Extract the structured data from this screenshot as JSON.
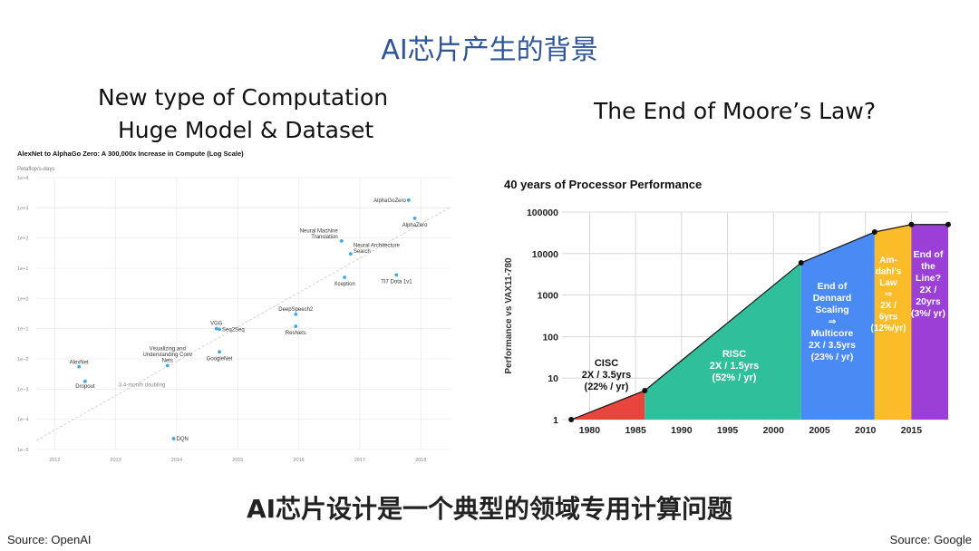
{
  "slide": {
    "title": "AI芯片产生的背景",
    "left_heading_line1": "New type of Computation",
    "left_heading_line2": "Huge Model & Dataset",
    "right_heading": "The End of Moore’s Law?",
    "footer_title": "AI芯片设计是一个典型的领域专用计算问题",
    "source_left": "Source: OpenAI",
    "source_right": "Source: Google"
  },
  "chart_data": [
    {
      "type": "scatter",
      "title": "AlexNet to AlphaGo Zero: A 300,000x Increase in Compute (Log Scale)",
      "ylabel": "Petaflop/s-days",
      "yscale": "log",
      "ylim": [
        1e-05,
        10000
      ],
      "xlim": [
        2011.7,
        2018.5
      ],
      "x_ticks": [
        "2012",
        "2013",
        "2014",
        "2015",
        "2016",
        "2017",
        "2018"
      ],
      "y_ticks": [
        "1e−5",
        "1e−4",
        "1e−3",
        "1e−2",
        "1e−1",
        "1e+0",
        "1e+1",
        "1e+2",
        "1e+3",
        "1e+4"
      ],
      "grid": true,
      "point_color": "#3fa9e0",
      "points": [
        {
          "label": "AlexNet",
          "x": 2012.4,
          "y": 0.0055
        },
        {
          "label": "Dropout",
          "x": 2012.5,
          "y": 0.0018
        },
        {
          "label": "DQN",
          "x": 2013.95,
          "y": 2.3e-05
        },
        {
          "label": "Visualizing and Understanding Conv Nets",
          "x": 2013.85,
          "y": 0.006
        },
        {
          "label": "GoogleNet",
          "x": 2014.7,
          "y": 0.017
        },
        {
          "label": "VGG",
          "x": 2014.65,
          "y": 0.1
        },
        {
          "label": "Seq2Seq",
          "x": 2014.7,
          "y": 0.095
        },
        {
          "label": "DeepSpeech2",
          "x": 2015.95,
          "y": 0.3
        },
        {
          "label": "ResNets",
          "x": 2015.95,
          "y": 0.12
        },
        {
          "label": "Neural Machine Translation",
          "x": 2016.7,
          "y": 80
        },
        {
          "label": "Neural Architecture Search",
          "x": 2016.85,
          "y": 30
        },
        {
          "label": "Xception",
          "x": 2016.75,
          "y": 5
        },
        {
          "label": "TI7 Dota 1v1",
          "x": 2017.6,
          "y": 6
        },
        {
          "label": "AlphaGoZero",
          "x": 2017.8,
          "y": 1800
        },
        {
          "label": "AlphaZero",
          "x": 2017.9,
          "y": 450
        }
      ],
      "trend": {
        "label": "3.4-month doubling",
        "from": [
          2011.7,
          2e-05
        ],
        "to": [
          2018.5,
          1100
        ]
      }
    },
    {
      "type": "area",
      "title": "40 years of Processor Performance",
      "ylabel": "Performance vs VAX11-780",
      "yscale": "log",
      "ylim": [
        1,
        100000
      ],
      "xlim": [
        1977,
        2019
      ],
      "x_ticks": [
        "1980",
        "1985",
        "1990",
        "1995",
        "2000",
        "2005",
        "2010",
        "2015"
      ],
      "y_ticks": [
        "1",
        "10",
        "100",
        "1000",
        "10000",
        "100000"
      ],
      "line_points": [
        {
          "x": 1978,
          "y": 1
        },
        {
          "x": 1986,
          "y": 5
        },
        {
          "x": 2003,
          "y": 6000
        },
        {
          "x": 2011,
          "y": 33000
        },
        {
          "x": 2015,
          "y": 50000
        },
        {
          "x": 2019,
          "y": 50000
        }
      ],
      "segments": [
        {
          "name": "CISC",
          "label_lines": [
            "CISC",
            "2X / 3.5yrs",
            "(22% / yr)"
          ],
          "x_start": 1978,
          "x_end": 1986,
          "color": "#e8453c",
          "text_color": "#111111"
        },
        {
          "name": "RISC",
          "label_lines": [
            "RISC",
            "2X / 1.5yrs",
            "(52% / yr)"
          ],
          "x_start": 1986,
          "x_end": 2003,
          "color": "#2fbf9a",
          "text_color": "#ffffff"
        },
        {
          "name": "End of Dennard Scaling",
          "label_lines": [
            "End of",
            "Dennard",
            "Scaling",
            "⇒",
            "Multicore",
            "2X / 3.5yrs",
            "(23% / yr)"
          ],
          "x_start": 2003,
          "x_end": 2011,
          "color": "#4a8af4",
          "text_color": "#ffffff"
        },
        {
          "name": "Amdahl's Law",
          "label_lines": [
            "Am-",
            "dahl’s",
            "Law",
            "⇒",
            "2X /",
            "6yrs",
            "(12%/yr)"
          ],
          "x_start": 2011,
          "x_end": 2015,
          "color": "#fbbc2a",
          "text_color": "#ffffff"
        },
        {
          "name": "End of the Line?",
          "label_lines": [
            "End of",
            "the",
            "Line?",
            "2X /",
            "20yrs",
            "(3%/ yr)"
          ],
          "x_start": 2015,
          "x_end": 2019,
          "color": "#9b3fd6",
          "text_color": "#ffffff"
        }
      ]
    }
  ]
}
